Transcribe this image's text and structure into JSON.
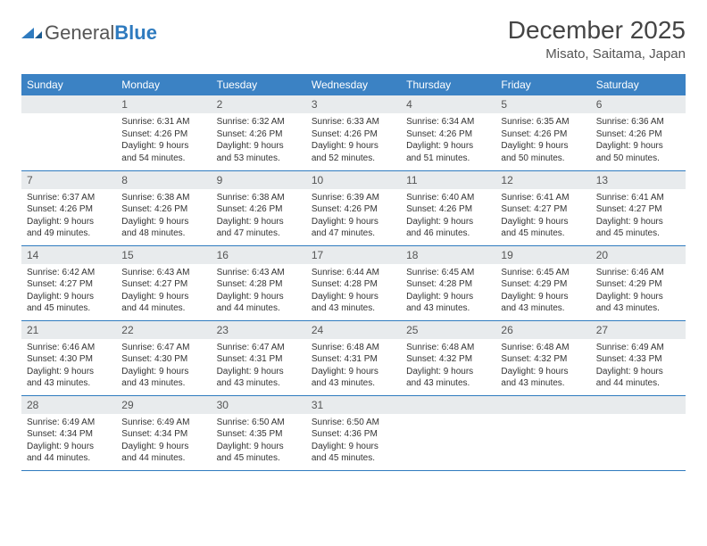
{
  "logo": {
    "general": "General",
    "blue": "Blue"
  },
  "title": "December 2025",
  "location": "Misato, Saitama, Japan",
  "colors": {
    "header_bg": "#3b82c4",
    "rule": "#2f7bbf",
    "daynum_bg": "#e8ebed"
  },
  "weekdays": [
    "Sunday",
    "Monday",
    "Tuesday",
    "Wednesday",
    "Thursday",
    "Friday",
    "Saturday"
  ],
  "weeks": [
    [
      null,
      {
        "n": "1",
        "sr": "Sunrise: 6:31 AM",
        "ss": "Sunset: 4:26 PM",
        "dl": "Daylight: 9 hours and 54 minutes."
      },
      {
        "n": "2",
        "sr": "Sunrise: 6:32 AM",
        "ss": "Sunset: 4:26 PM",
        "dl": "Daylight: 9 hours and 53 minutes."
      },
      {
        "n": "3",
        "sr": "Sunrise: 6:33 AM",
        "ss": "Sunset: 4:26 PM",
        "dl": "Daylight: 9 hours and 52 minutes."
      },
      {
        "n": "4",
        "sr": "Sunrise: 6:34 AM",
        "ss": "Sunset: 4:26 PM",
        "dl": "Daylight: 9 hours and 51 minutes."
      },
      {
        "n": "5",
        "sr": "Sunrise: 6:35 AM",
        "ss": "Sunset: 4:26 PM",
        "dl": "Daylight: 9 hours and 50 minutes."
      },
      {
        "n": "6",
        "sr": "Sunrise: 6:36 AM",
        "ss": "Sunset: 4:26 PM",
        "dl": "Daylight: 9 hours and 50 minutes."
      }
    ],
    [
      {
        "n": "7",
        "sr": "Sunrise: 6:37 AM",
        "ss": "Sunset: 4:26 PM",
        "dl": "Daylight: 9 hours and 49 minutes."
      },
      {
        "n": "8",
        "sr": "Sunrise: 6:38 AM",
        "ss": "Sunset: 4:26 PM",
        "dl": "Daylight: 9 hours and 48 minutes."
      },
      {
        "n": "9",
        "sr": "Sunrise: 6:38 AM",
        "ss": "Sunset: 4:26 PM",
        "dl": "Daylight: 9 hours and 47 minutes."
      },
      {
        "n": "10",
        "sr": "Sunrise: 6:39 AM",
        "ss": "Sunset: 4:26 PM",
        "dl": "Daylight: 9 hours and 47 minutes."
      },
      {
        "n": "11",
        "sr": "Sunrise: 6:40 AM",
        "ss": "Sunset: 4:26 PM",
        "dl": "Daylight: 9 hours and 46 minutes."
      },
      {
        "n": "12",
        "sr": "Sunrise: 6:41 AM",
        "ss": "Sunset: 4:27 PM",
        "dl": "Daylight: 9 hours and 45 minutes."
      },
      {
        "n": "13",
        "sr": "Sunrise: 6:41 AM",
        "ss": "Sunset: 4:27 PM",
        "dl": "Daylight: 9 hours and 45 minutes."
      }
    ],
    [
      {
        "n": "14",
        "sr": "Sunrise: 6:42 AM",
        "ss": "Sunset: 4:27 PM",
        "dl": "Daylight: 9 hours and 45 minutes."
      },
      {
        "n": "15",
        "sr": "Sunrise: 6:43 AM",
        "ss": "Sunset: 4:27 PM",
        "dl": "Daylight: 9 hours and 44 minutes."
      },
      {
        "n": "16",
        "sr": "Sunrise: 6:43 AM",
        "ss": "Sunset: 4:28 PM",
        "dl": "Daylight: 9 hours and 44 minutes."
      },
      {
        "n": "17",
        "sr": "Sunrise: 6:44 AM",
        "ss": "Sunset: 4:28 PM",
        "dl": "Daylight: 9 hours and 43 minutes."
      },
      {
        "n": "18",
        "sr": "Sunrise: 6:45 AM",
        "ss": "Sunset: 4:28 PM",
        "dl": "Daylight: 9 hours and 43 minutes."
      },
      {
        "n": "19",
        "sr": "Sunrise: 6:45 AM",
        "ss": "Sunset: 4:29 PM",
        "dl": "Daylight: 9 hours and 43 minutes."
      },
      {
        "n": "20",
        "sr": "Sunrise: 6:46 AM",
        "ss": "Sunset: 4:29 PM",
        "dl": "Daylight: 9 hours and 43 minutes."
      }
    ],
    [
      {
        "n": "21",
        "sr": "Sunrise: 6:46 AM",
        "ss": "Sunset: 4:30 PM",
        "dl": "Daylight: 9 hours and 43 minutes."
      },
      {
        "n": "22",
        "sr": "Sunrise: 6:47 AM",
        "ss": "Sunset: 4:30 PM",
        "dl": "Daylight: 9 hours and 43 minutes."
      },
      {
        "n": "23",
        "sr": "Sunrise: 6:47 AM",
        "ss": "Sunset: 4:31 PM",
        "dl": "Daylight: 9 hours and 43 minutes."
      },
      {
        "n": "24",
        "sr": "Sunrise: 6:48 AM",
        "ss": "Sunset: 4:31 PM",
        "dl": "Daylight: 9 hours and 43 minutes."
      },
      {
        "n": "25",
        "sr": "Sunrise: 6:48 AM",
        "ss": "Sunset: 4:32 PM",
        "dl": "Daylight: 9 hours and 43 minutes."
      },
      {
        "n": "26",
        "sr": "Sunrise: 6:48 AM",
        "ss": "Sunset: 4:32 PM",
        "dl": "Daylight: 9 hours and 43 minutes."
      },
      {
        "n": "27",
        "sr": "Sunrise: 6:49 AM",
        "ss": "Sunset: 4:33 PM",
        "dl": "Daylight: 9 hours and 44 minutes."
      }
    ],
    [
      {
        "n": "28",
        "sr": "Sunrise: 6:49 AM",
        "ss": "Sunset: 4:34 PM",
        "dl": "Daylight: 9 hours and 44 minutes."
      },
      {
        "n": "29",
        "sr": "Sunrise: 6:49 AM",
        "ss": "Sunset: 4:34 PM",
        "dl": "Daylight: 9 hours and 44 minutes."
      },
      {
        "n": "30",
        "sr": "Sunrise: 6:50 AM",
        "ss": "Sunset: 4:35 PM",
        "dl": "Daylight: 9 hours and 45 minutes."
      },
      {
        "n": "31",
        "sr": "Sunrise: 6:50 AM",
        "ss": "Sunset: 4:36 PM",
        "dl": "Daylight: 9 hours and 45 minutes."
      },
      null,
      null,
      null
    ]
  ]
}
